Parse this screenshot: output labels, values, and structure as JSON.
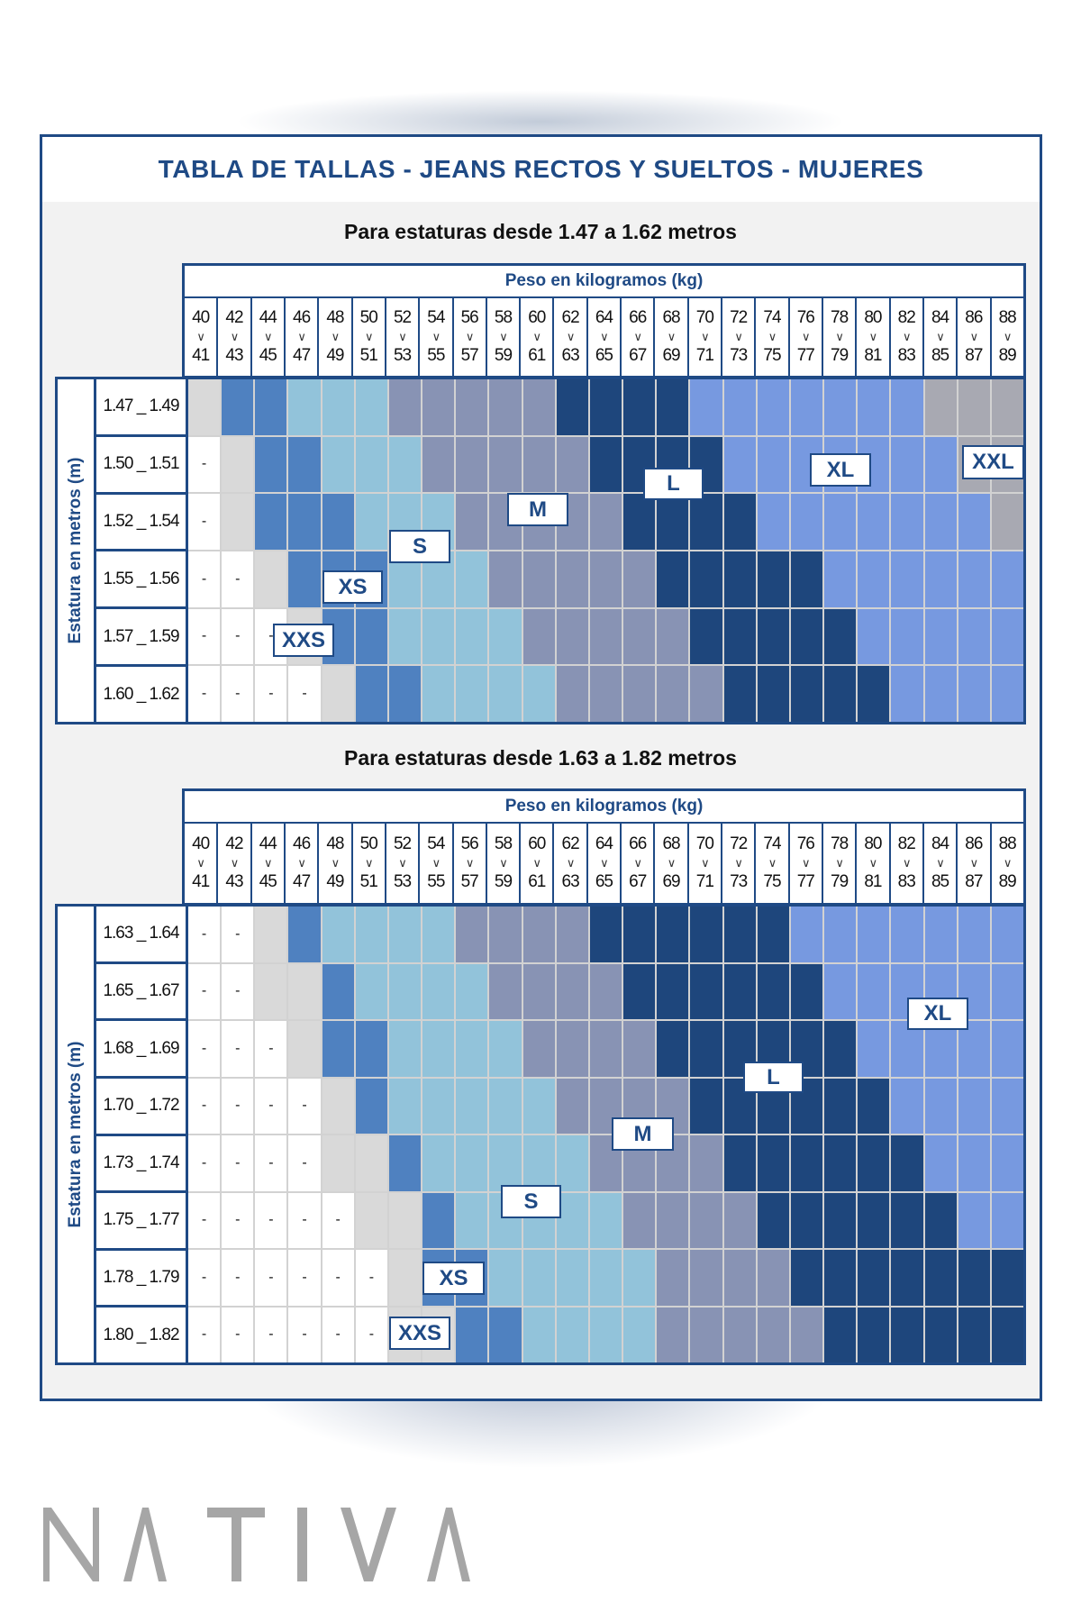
{
  "title": "TABLA DE TALLAS - JEANS RECTOS Y SUELTOS - MUJERES",
  "weight_header": "Peso en kilogramos (kg)",
  "height_axis_label": "Estatura en metros (m)",
  "range_separator": "∨",
  "weight_columns": [
    [
      "40",
      "41"
    ],
    [
      "42",
      "43"
    ],
    [
      "44",
      "45"
    ],
    [
      "46",
      "47"
    ],
    [
      "48",
      "49"
    ],
    [
      "50",
      "51"
    ],
    [
      "52",
      "53"
    ],
    [
      "54",
      "55"
    ],
    [
      "56",
      "57"
    ],
    [
      "58",
      "59"
    ],
    [
      "60",
      "61"
    ],
    [
      "62",
      "63"
    ],
    [
      "64",
      "65"
    ],
    [
      "66",
      "67"
    ],
    [
      "68",
      "69"
    ],
    [
      "70",
      "71"
    ],
    [
      "72",
      "73"
    ],
    [
      "74",
      "75"
    ],
    [
      "76",
      "77"
    ],
    [
      "78",
      "79"
    ],
    [
      "80",
      "81"
    ],
    [
      "82",
      "83"
    ],
    [
      "84",
      "85"
    ],
    [
      "86",
      "87"
    ],
    [
      "88",
      "89"
    ]
  ],
  "size_colors": {
    "-": "#ffffff",
    "XXS": "#d9d9d9",
    "XS": "#4f81c0",
    "S": "#92c3da",
    "M": "#8893b4",
    "L": "#1e467c",
    "XL": "#7799e0",
    "XXL": "#a8a9b2"
  },
  "empty_cell_text": "-",
  "tables": [
    {
      "subtitle": "Para estaturas desde 1.47 a 1.62 metros",
      "labels": [
        "XXS",
        "XS",
        "S",
        "M",
        "L",
        "XL",
        "XXL"
      ],
      "rows": [
        {
          "height": "1.47 _ 1.49",
          "sizes": [
            "XXS",
            "XS",
            "XS",
            "S",
            "S",
            "S",
            "M",
            "M",
            "M",
            "M",
            "M",
            "L",
            "L",
            "L",
            "L",
            "XL",
            "XL",
            "XL",
            "XL",
            "XL",
            "XL",
            "XL",
            "XXL",
            "XXL",
            "XXL"
          ]
        },
        {
          "height": "1.50 _ 1.51",
          "sizes": [
            "-",
            "XXS",
            "XS",
            "XS",
            "S",
            "S",
            "S",
            "M",
            "M",
            "M",
            "M",
            "M",
            "L",
            "L",
            "L",
            "L",
            "XL",
            "XL",
            "XL",
            "XL",
            "XL",
            "XL",
            "XL",
            "XXL",
            "XXL"
          ]
        },
        {
          "height": "1.52 _ 1.54",
          "sizes": [
            "-",
            "XXS",
            "XS",
            "XS",
            "XS",
            "S",
            "S",
            "S",
            "M",
            "M",
            "M",
            "M",
            "M",
            "L",
            "L",
            "L",
            "L",
            "XL",
            "XL",
            "XL",
            "XL",
            "XL",
            "XL",
            "XL",
            "XXL"
          ]
        },
        {
          "height": "1.55 _ 1.56",
          "sizes": [
            "-",
            "-",
            "XXS",
            "XS",
            "XS",
            "XS",
            "S",
            "S",
            "S",
            "M",
            "M",
            "M",
            "M",
            "M",
            "L",
            "L",
            "L",
            "L",
            "L",
            "XL",
            "XL",
            "XL",
            "XL",
            "XL",
            "XL"
          ]
        },
        {
          "height": "1.57 _ 1.59",
          "sizes": [
            "-",
            "-",
            "-",
            "XXS",
            "XS",
            "XS",
            "S",
            "S",
            "S",
            "S",
            "M",
            "M",
            "M",
            "M",
            "M",
            "L",
            "L",
            "L",
            "L",
            "L",
            "XL",
            "XL",
            "XL",
            "XL",
            "XL"
          ]
        },
        {
          "height": "1.60 _ 1.62",
          "sizes": [
            "-",
            "-",
            "-",
            "-",
            "XXS",
            "XS",
            "XS",
            "S",
            "S",
            "S",
            "S",
            "M",
            "M",
            "M",
            "M",
            "M",
            "L",
            "L",
            "L",
            "L",
            "L",
            "XL",
            "XL",
            "XL",
            "XL"
          ]
        }
      ]
    },
    {
      "subtitle": "Para estaturas desde 1.63 a 1.82 metros",
      "labels": [
        "XXS",
        "XS",
        "S",
        "M",
        "L",
        "XL"
      ],
      "rows": [
        {
          "height": "1.63 _ 1.64",
          "sizes": [
            "-",
            "-",
            "XXS",
            "XS",
            "S",
            "S",
            "S",
            "S",
            "M",
            "M",
            "M",
            "M",
            "L",
            "L",
            "L",
            "L",
            "L",
            "L",
            "XL",
            "XL",
            "XL",
            "XL",
            "XL",
            "XL",
            "XL"
          ]
        },
        {
          "height": "1.65 _ 1.67",
          "sizes": [
            "-",
            "-",
            "XXS",
            "XXS",
            "XS",
            "S",
            "S",
            "S",
            "S",
            "M",
            "M",
            "M",
            "M",
            "L",
            "L",
            "L",
            "L",
            "L",
            "L",
            "XL",
            "XL",
            "XL",
            "XL",
            "XL",
            "XL"
          ]
        },
        {
          "height": "1.68 _ 1.69",
          "sizes": [
            "-",
            "-",
            "-",
            "XXS",
            "XS",
            "XS",
            "S",
            "S",
            "S",
            "S",
            "M",
            "M",
            "M",
            "M",
            "L",
            "L",
            "L",
            "L",
            "L",
            "L",
            "XL",
            "XL",
            "XL",
            "XL",
            "XL"
          ]
        },
        {
          "height": "1.70 _ 1.72",
          "sizes": [
            "-",
            "-",
            "-",
            "-",
            "XXS",
            "XS",
            "S",
            "S",
            "S",
            "S",
            "S",
            "M",
            "M",
            "M",
            "M",
            "L",
            "L",
            "L",
            "L",
            "L",
            "L",
            "XL",
            "XL",
            "XL",
            "XL"
          ]
        },
        {
          "height": "1.73 _ 1.74",
          "sizes": [
            "-",
            "-",
            "-",
            "-",
            "XXS",
            "XXS",
            "XS",
            "S",
            "S",
            "S",
            "S",
            "S",
            "M",
            "M",
            "M",
            "M",
            "L",
            "L",
            "L",
            "L",
            "L",
            "L",
            "XL",
            "XL",
            "XL"
          ]
        },
        {
          "height": "1.75 _ 1.77",
          "sizes": [
            "-",
            "-",
            "-",
            "-",
            "-",
            "XXS",
            "XXS",
            "XS",
            "S",
            "S",
            "S",
            "S",
            "S",
            "M",
            "M",
            "M",
            "M",
            "L",
            "L",
            "L",
            "L",
            "L",
            "L",
            "XL",
            "XL"
          ]
        },
        {
          "height": "1.78 _ 1.79",
          "sizes": [
            "-",
            "-",
            "-",
            "-",
            "-",
            "-",
            "XXS",
            "XS",
            "XS",
            "S",
            "S",
            "S",
            "S",
            "S",
            "M",
            "M",
            "M",
            "M",
            "L",
            "L",
            "L",
            "L",
            "L",
            "L",
            "L"
          ]
        },
        {
          "height": "1.80 _ 1.82",
          "sizes": [
            "-",
            "-",
            "-",
            "-",
            "-",
            "-",
            "XXS",
            "XXS",
            "XS",
            "XS",
            "S",
            "S",
            "S",
            "S",
            "M",
            "M",
            "M",
            "M",
            "M",
            "L",
            "L",
            "L",
            "L",
            "L",
            "L"
          ]
        }
      ]
    }
  ],
  "logo_text": "NATIVA"
}
